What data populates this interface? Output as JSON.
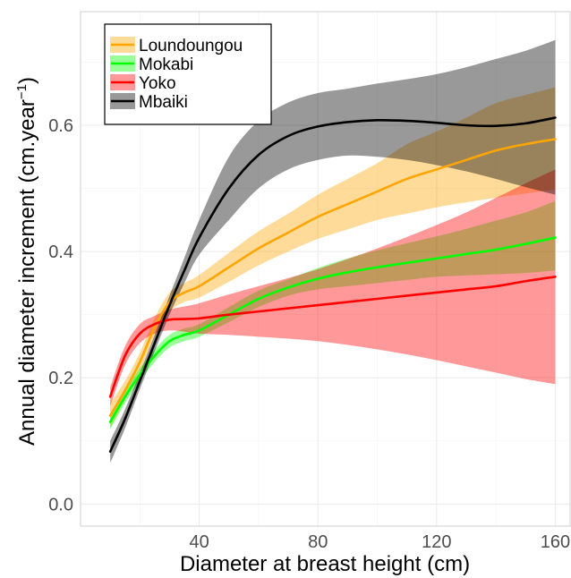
{
  "chart_data": {
    "type": "line",
    "xlabel": "Diameter at breast height (cm)",
    "ylabel": "Annual diameter increment (cm.year",
    "ylabel_superscript": "−1",
    "ylabel_close": ")",
    "xlim": [
      0,
      165
    ],
    "ylim": [
      -0.035,
      0.78
    ],
    "x_ticks": [
      40,
      80,
      120,
      160
    ],
    "y_ticks": [
      0.0,
      0.2,
      0.4,
      0.6
    ],
    "x_tick_labels": [
      "40",
      "80",
      "120",
      "160"
    ],
    "y_tick_labels": [
      "0.0",
      "0.2",
      "0.4",
      "0.6"
    ],
    "grid": true,
    "legend_position": "top-left",
    "series": [
      {
        "name": "Loundoungou",
        "color": "#FFA500",
        "x": [
          10,
          15,
          20,
          25,
          30,
          35,
          40,
          50,
          60,
          70,
          80,
          90,
          100,
          110,
          120,
          130,
          140,
          150,
          160
        ],
        "y": [
          0.14,
          0.18,
          0.225,
          0.28,
          0.32,
          0.335,
          0.345,
          0.375,
          0.405,
          0.43,
          0.455,
          0.475,
          0.495,
          0.515,
          0.53,
          0.545,
          0.56,
          0.57,
          0.578
        ],
        "lower": [
          0.12,
          0.165,
          0.21,
          0.265,
          0.305,
          0.32,
          0.327,
          0.352,
          0.378,
          0.4,
          0.42,
          0.435,
          0.45,
          0.46,
          0.47,
          0.478,
          0.485,
          0.492,
          0.498
        ],
        "upper": [
          0.16,
          0.195,
          0.24,
          0.295,
          0.335,
          0.35,
          0.363,
          0.398,
          0.432,
          0.46,
          0.49,
          0.515,
          0.54,
          0.57,
          0.59,
          0.612,
          0.635,
          0.648,
          0.66
        ]
      },
      {
        "name": "Mokabi",
        "color": "#00FF00",
        "x": [
          10,
          15,
          20,
          25,
          30,
          35,
          40,
          50,
          60,
          70,
          80,
          90,
          100,
          110,
          120,
          130,
          140,
          150,
          160
        ],
        "y": [
          0.13,
          0.17,
          0.205,
          0.235,
          0.258,
          0.268,
          0.275,
          0.3,
          0.325,
          0.343,
          0.357,
          0.367,
          0.375,
          0.382,
          0.389,
          0.396,
          0.403,
          0.412,
          0.422
        ],
        "lower": [
          0.118,
          0.16,
          0.195,
          0.225,
          0.248,
          0.258,
          0.265,
          0.288,
          0.312,
          0.33,
          0.34,
          0.345,
          0.35,
          0.355,
          0.36,
          0.362,
          0.364,
          0.366,
          0.37
        ],
        "upper": [
          0.142,
          0.18,
          0.215,
          0.245,
          0.268,
          0.278,
          0.285,
          0.312,
          0.338,
          0.356,
          0.374,
          0.389,
          0.402,
          0.413,
          0.424,
          0.436,
          0.449,
          0.462,
          0.48
        ]
      },
      {
        "name": "Yoko",
        "color": "#FF0000",
        "x": [
          10,
          15,
          20,
          25,
          30,
          35,
          40,
          50,
          60,
          70,
          80,
          90,
          100,
          110,
          120,
          130,
          140,
          150,
          160
        ],
        "y": [
          0.17,
          0.235,
          0.27,
          0.285,
          0.292,
          0.293,
          0.294,
          0.3,
          0.305,
          0.31,
          0.315,
          0.32,
          0.325,
          0.33,
          0.335,
          0.34,
          0.345,
          0.353,
          0.36
        ],
        "lower": [
          0.155,
          0.22,
          0.255,
          0.27,
          0.275,
          0.273,
          0.27,
          0.268,
          0.265,
          0.262,
          0.258,
          0.252,
          0.245,
          0.237,
          0.228,
          0.218,
          0.208,
          0.198,
          0.19
        ],
        "upper": [
          0.185,
          0.25,
          0.285,
          0.298,
          0.308,
          0.313,
          0.318,
          0.332,
          0.345,
          0.358,
          0.372,
          0.388,
          0.405,
          0.423,
          0.442,
          0.462,
          0.485,
          0.508,
          0.53
        ]
      },
      {
        "name": "Mbaiki",
        "color": "#000000",
        "x": [
          10,
          15,
          20,
          25,
          30,
          35,
          40,
          50,
          60,
          70,
          80,
          90,
          100,
          110,
          120,
          130,
          140,
          150,
          160
        ],
        "y": [
          0.083,
          0.135,
          0.195,
          0.255,
          0.315,
          0.37,
          0.422,
          0.5,
          0.553,
          0.583,
          0.598,
          0.605,
          0.608,
          0.607,
          0.604,
          0.6,
          0.599,
          0.603,
          0.612
        ],
        "lower": [
          0.065,
          0.12,
          0.182,
          0.242,
          0.3,
          0.35,
          0.395,
          0.45,
          0.5,
          0.53,
          0.545,
          0.552,
          0.55,
          0.545,
          0.537,
          0.527,
          0.515,
          0.502,
          0.49
        ],
        "upper": [
          0.1,
          0.15,
          0.208,
          0.268,
          0.33,
          0.39,
          0.45,
          0.55,
          0.607,
          0.636,
          0.651,
          0.658,
          0.666,
          0.673,
          0.681,
          0.692,
          0.705,
          0.718,
          0.735
        ]
      }
    ]
  }
}
